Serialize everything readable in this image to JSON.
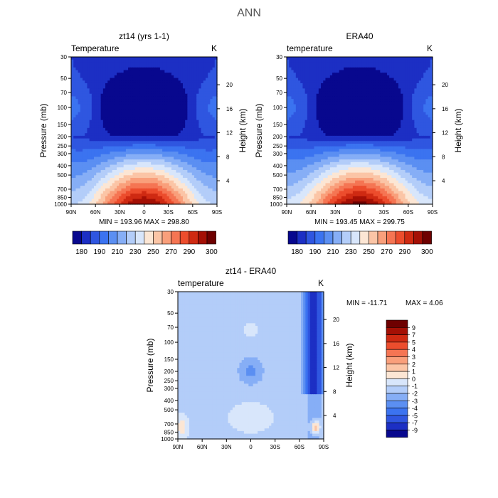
{
  "figure": {
    "title": "ANN"
  },
  "colors": {
    "seq": [
      "#08088e",
      "#1c2fc4",
      "#2f56e0",
      "#3b73f0",
      "#5b8ff2",
      "#86aef6",
      "#b3cdf9",
      "#d8e6fb",
      "#fce6d4",
      "#fbc5a6",
      "#f99f7b",
      "#f57553",
      "#ec4d2d",
      "#cf2a12",
      "#a41005",
      "#6e0000"
    ],
    "div_pos": [
      "#fce6d4",
      "#fbc5a6",
      "#f99f7b",
      "#f57553",
      "#ec4d2d",
      "#cf2a12",
      "#a41005",
      "#6e0000"
    ],
    "div_neg": [
      "#d8e6fb",
      "#b3cdf9",
      "#86aef6",
      "#5b8ff2",
      "#3b73f0",
      "#2f56e0",
      "#1c2fc4",
      "#08088e"
    ]
  },
  "chart_data": [
    {
      "type": "heatmap",
      "title": "zt14 (yrs 1-1)",
      "subtitle_left": "Temperature",
      "subtitle_right": "K",
      "ylabel": "Pressure (mb)",
      "ylabel_right": "Height (km)",
      "x_ticks": [
        "90N",
        "60N",
        "30N",
        "0",
        "30S",
        "60S",
        "90S"
      ],
      "y_ticks": [
        "30",
        "50",
        "70",
        "100",
        "150",
        "200",
        "250",
        "300",
        "400",
        "500",
        "700",
        "850",
        "1000"
      ],
      "y_ticks_right": [
        "20",
        "16",
        "12",
        "8",
        "4"
      ],
      "stats": "MIN = 193.96   MAX = 298.80",
      "colorbar_labels": [
        "180",
        "190",
        "210",
        "230",
        "250",
        "270",
        "290",
        "300"
      ],
      "contour_levels": [
        298,
        292,
        286,
        280,
        274,
        268,
        262,
        256,
        250,
        244,
        238,
        232,
        226,
        220,
        214,
        208,
        202,
        196
      ],
      "field_params": {
        "t_sfc": 299,
        "t_min": 195,
        "pole_cooling": 50
      }
    },
    {
      "type": "heatmap",
      "title": "ERA40",
      "subtitle_left": "temperature",
      "subtitle_right": "K",
      "ylabel": "Pressure (mb)",
      "ylabel_right": "Height (km)",
      "x_ticks": [
        "90N",
        "60N",
        "30N",
        "0",
        "30S",
        "60S",
        "90S"
      ],
      "y_ticks": [
        "30",
        "50",
        "70",
        "100",
        "150",
        "200",
        "250",
        "300",
        "400",
        "500",
        "700",
        "850",
        "1000"
      ],
      "y_ticks_right": [
        "20",
        "16",
        "12",
        "8",
        "4"
      ],
      "stats": "MIN = 193.45   MAX = 299.75",
      "colorbar_labels": [
        "180",
        "190",
        "210",
        "230",
        "250",
        "270",
        "290",
        "300"
      ],
      "contour_levels": [
        298,
        292,
        286,
        280,
        274,
        268,
        262,
        256,
        250,
        244,
        238,
        232,
        226,
        220,
        214,
        208,
        202,
        196
      ],
      "field_params": {
        "t_sfc": 300,
        "t_min": 194,
        "pole_cooling": 48
      }
    },
    {
      "type": "heatmap",
      "title": "zt14 - ERA40",
      "subtitle_left": "temperature",
      "subtitle_right": "K",
      "ylabel": "Pressure (mb)",
      "ylabel_right": "Height (km)",
      "x_ticks": [
        "90N",
        "60N",
        "30N",
        "0",
        "30S",
        "60S",
        "90S"
      ],
      "y_ticks": [
        "30",
        "50",
        "70",
        "100",
        "150",
        "200",
        "250",
        "300",
        "400",
        "500",
        "700",
        "850",
        "1000"
      ],
      "y_ticks_right": [
        "20",
        "16",
        "12",
        "8",
        "4"
      ],
      "stats_min": "MIN = -11.71",
      "stats_max": "MAX =    4.06",
      "colorbar_labels": [
        "9",
        "7",
        "5",
        "4",
        "3",
        "2",
        "1",
        "0",
        "-1",
        "-2",
        "-3",
        "-4",
        "-5",
        "-7",
        "-9"
      ],
      "contour_levels": [
        -9,
        -7,
        -5,
        -4,
        -3,
        -2,
        -1,
        0,
        1,
        2,
        3,
        4,
        5,
        7
      ]
    }
  ]
}
